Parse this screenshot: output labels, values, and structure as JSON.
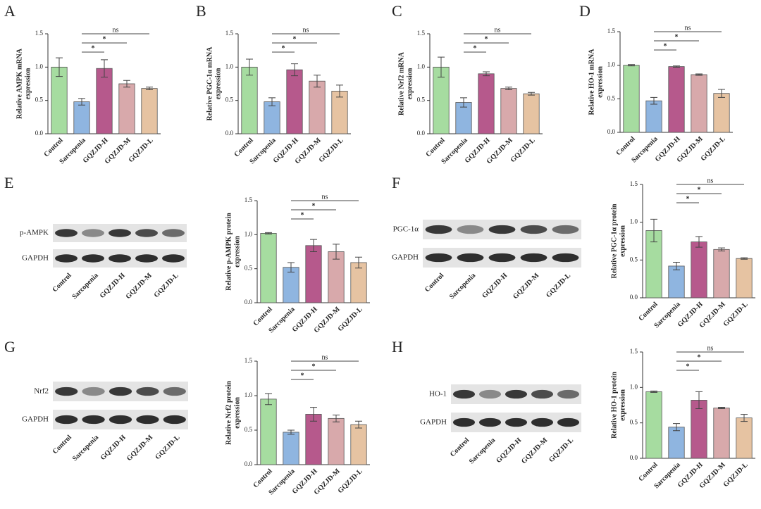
{
  "chart_data": [
    {
      "type": "bar",
      "panel": "A",
      "ylabel": [
        "Relative AMPK mRNA",
        "expression"
      ],
      "categories": [
        "Control",
        "Sarcopenia",
        "GQZJD-H",
        "GQZJD-M",
        "GQZJD-L"
      ],
      "values": [
        1.0,
        0.48,
        0.98,
        0.75,
        0.68
      ],
      "errors": [
        0.14,
        0.05,
        0.13,
        0.05,
        0.02
      ],
      "colors": [
        "#a6dca0",
        "#8fb5e0",
        "#b6598c",
        "#d8a9ab",
        "#e6c3a2"
      ],
      "ylim": [
        0,
        1.5
      ],
      "yticks": [
        {
          "value": 0,
          "label": "0.0"
        },
        0.5,
        {
          "value": 1,
          "label": "1.0"
        },
        1.5
      ],
      "annotations": [
        "*",
        "*",
        "ns"
      ]
    },
    {
      "type": "bar",
      "panel": "B",
      "ylabel": [
        "Relative PGC-1α mRNA",
        "expression"
      ],
      "categories": [
        "Control",
        "Sarcopenia",
        "GQZJD-H",
        "GQZJD-M",
        "GQZJD-L"
      ],
      "values": [
        1.0,
        0.48,
        0.96,
        0.79,
        0.64
      ],
      "errors": [
        0.12,
        0.06,
        0.09,
        0.09,
        0.09
      ],
      "colors": [
        "#a6dca0",
        "#8fb5e0",
        "#b6598c",
        "#d8a9ab",
        "#e6c3a2"
      ],
      "ylim": [
        0,
        1.5
      ],
      "yticks": [
        {
          "value": 0,
          "label": "0.0"
        },
        0.5,
        {
          "value": 1,
          "label": "1.0"
        },
        1.5
      ],
      "annotations": [
        "*",
        "*",
        "ns"
      ]
    },
    {
      "type": "bar",
      "panel": "C",
      "ylabel": [
        "Relative Nrf2 mRNA",
        "expression"
      ],
      "categories": [
        "Control",
        "Sarcopenia",
        "GQZJD-H",
        "GQZJD-M",
        "GQZJD-L"
      ],
      "values": [
        1.0,
        0.47,
        0.9,
        0.68,
        0.6
      ],
      "errors": [
        0.15,
        0.07,
        0.03,
        0.02,
        0.02
      ],
      "colors": [
        "#a6dca0",
        "#8fb5e0",
        "#b6598c",
        "#d8a9ab",
        "#e6c3a2"
      ],
      "ylim": [
        0,
        1.5
      ],
      "yticks": [
        {
          "value": 0,
          "label": "0.0"
        },
        0.5,
        {
          "value": 1,
          "label": "1.0"
        },
        1.5
      ],
      "annotations": [
        "*",
        "*",
        "ns"
      ]
    },
    {
      "type": "bar",
      "panel": "D",
      "ylabel": [
        "Relative HO-1 mRNA",
        "expression"
      ],
      "categories": [
        "Control",
        "Sarcopenia",
        "GQZJD-H",
        "GQZJD-M",
        "GQZJD-L"
      ],
      "values": [
        1.0,
        0.47,
        0.98,
        0.86,
        0.58
      ],
      "errors": [
        0.01,
        0.05,
        0.01,
        0.01,
        0.06
      ],
      "colors": [
        "#a6dca0",
        "#8fb5e0",
        "#b6598c",
        "#d8a9ab",
        "#e6c3a2"
      ],
      "ylim": [
        0,
        1.5
      ],
      "yticks": [
        {
          "value": 0,
          "label": "0.0"
        },
        0.5,
        {
          "value": 1,
          "label": "1.0"
        },
        1.5
      ],
      "annotations": [
        "*",
        "*",
        "ns"
      ]
    },
    {
      "type": "bar",
      "panel": "E",
      "ylabel": [
        "Relative p-AMPK protein",
        "expression"
      ],
      "categories": [
        "Control",
        "Sarcopenia",
        "GQZJD-H",
        "GQZJD-M",
        "GQZJD-L"
      ],
      "values": [
        1.02,
        0.52,
        0.84,
        0.75,
        0.59
      ],
      "errors": [
        0.01,
        0.07,
        0.09,
        0.11,
        0.08
      ],
      "colors": [
        "#a6dca0",
        "#8fb5e0",
        "#b6598c",
        "#d8a9ab",
        "#e6c3a2"
      ],
      "ylim": [
        0,
        1.5
      ],
      "yticks": [
        {
          "value": 0,
          "label": "0.0"
        },
        0.5,
        {
          "value": 1,
          "label": "1.0"
        },
        1.5
      ],
      "annotations": [
        "*",
        "*",
        "ns"
      ]
    },
    {
      "type": "bar",
      "panel": "F",
      "ylabel": [
        "Relative PGC-1α protein",
        "expression"
      ],
      "categories": [
        "Control",
        "Sarcopenia",
        "GQZJD-H",
        "GQZJD-M",
        "GQZJD-L"
      ],
      "values": [
        0.89,
        0.42,
        0.74,
        0.64,
        0.52
      ],
      "errors": [
        0.15,
        0.05,
        0.07,
        0.02,
        0.01
      ],
      "colors": [
        "#a6dca0",
        "#8fb5e0",
        "#b6598c",
        "#d8a9ab",
        "#e6c3a2"
      ],
      "ylim": [
        0,
        1.5
      ],
      "yticks": [
        {
          "value": 0,
          "label": "0.0"
        },
        0.5,
        {
          "value": 1,
          "label": "1.0"
        },
        1.5
      ],
      "annotations": [
        "*",
        "*",
        "ns"
      ]
    },
    {
      "type": "bar",
      "panel": "G",
      "ylabel": [
        "Relative Nrf2 protein",
        "expression"
      ],
      "categories": [
        "Control",
        "Sarcopenia",
        "GQZJD-H",
        "GQZJD-M",
        "GQZJD-L"
      ],
      "values": [
        0.95,
        0.47,
        0.73,
        0.67,
        0.58
      ],
      "errors": [
        0.08,
        0.03,
        0.1,
        0.05,
        0.05
      ],
      "colors": [
        "#a6dca0",
        "#8fb5e0",
        "#b6598c",
        "#d8a9ab",
        "#e6c3a2"
      ],
      "ylim": [
        0,
        1.5
      ],
      "yticks": [
        {
          "value": 0,
          "label": "0.0"
        },
        0.5,
        {
          "value": 1,
          "label": "1.0"
        },
        1.5
      ],
      "annotations": [
        "*",
        "*",
        "ns"
      ]
    },
    {
      "type": "bar",
      "panel": "H",
      "ylabel": [
        "Relative HO-1 protein",
        "expression"
      ],
      "categories": [
        "Control",
        "Sarcopenia",
        "GQZJD-H",
        "GQZJD-M",
        "GQZJD-L"
      ],
      "values": [
        0.94,
        0.44,
        0.82,
        0.71,
        0.57
      ],
      "errors": [
        0.01,
        0.05,
        0.12,
        0.01,
        0.05
      ],
      "colors": [
        "#a6dca0",
        "#8fb5e0",
        "#b6598c",
        "#d8a9ab",
        "#e6c3a2"
      ],
      "ylim": [
        0,
        1.5
      ],
      "yticks": [
        {
          "value": 0,
          "label": "0.0"
        },
        0.5,
        {
          "value": 1,
          "label": "1.0"
        },
        1.5
      ],
      "annotations": [
        "*",
        "*",
        "ns"
      ]
    }
  ],
  "blots": [
    {
      "rows": [
        "p-AMPK",
        "GAPDH"
      ],
      "lanes": [
        "Control",
        "Sarcopenia",
        "GQZJD-H",
        "GQZJD-M",
        "GQZJD-L"
      ]
    },
    {
      "rows": [
        "PGC-1α",
        "GAPDH"
      ],
      "lanes": [
        "Control",
        "Sarcopenia",
        "GQZJD-H",
        "GQZJD-M",
        "GQZJD-L"
      ]
    },
    {
      "rows": [
        "Nrf2",
        "GAPDH"
      ],
      "lanes": [
        "Control",
        "Sarcopenia",
        "GQZJD-H",
        "GQZJD-M",
        "GQZJD-L"
      ]
    },
    {
      "rows": [
        "HO-1",
        "GAPDH"
      ],
      "lanes": [
        "Control",
        "Sarcopenia",
        "GQZJD-H",
        "GQZJD-M",
        "GQZJD-L"
      ]
    }
  ]
}
